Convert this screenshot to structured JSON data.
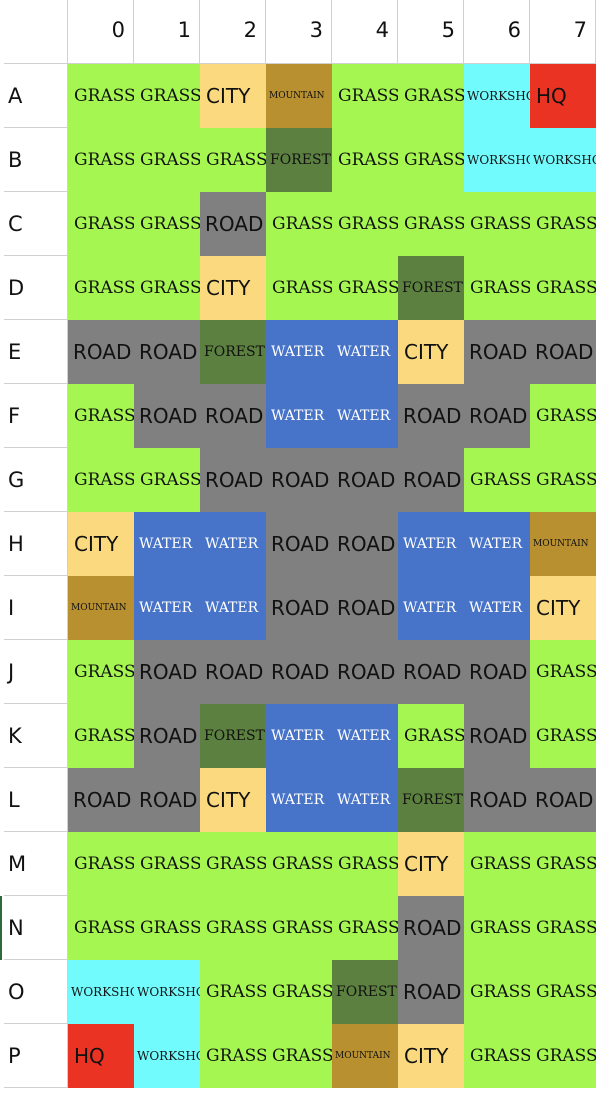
{
  "columns": [
    "0",
    "1",
    "2",
    "3",
    "4",
    "5",
    "6",
    "7"
  ],
  "tile_colors": {
    "GRASS": "#a5f650",
    "CITY": "#fad97f",
    "MOUNTAIN": "#b8902f",
    "FOREST": "#5c803f",
    "WORKSHOP": "#71fbfc",
    "HQ": "#ea3323",
    "ROAD": "#808080",
    "WATER": "#4774c9"
  },
  "rows": [
    {
      "label": "A",
      "cells": [
        "GRASS",
        "GRASS",
        "CITY",
        "MOUNTAIN",
        "GRASS",
        "GRASS",
        "WORKSHOP",
        "HQ"
      ]
    },
    {
      "label": "B",
      "cells": [
        "GRASS",
        "GRASS",
        "GRASS",
        "FOREST",
        "GRASS",
        "GRASS",
        "WORKSHOP",
        "WORKSHOP"
      ]
    },
    {
      "label": "C",
      "cells": [
        "GRASS",
        "GRASS",
        "ROAD",
        "GRASS",
        "GRASS",
        "GRASS",
        "GRASS",
        "GRASS"
      ]
    },
    {
      "label": "D",
      "cells": [
        "GRASS",
        "GRASS",
        "CITY",
        "GRASS",
        "GRASS",
        "FOREST",
        "GRASS",
        "GRASS"
      ]
    },
    {
      "label": "E",
      "cells": [
        "ROAD",
        "ROAD",
        "FOREST",
        "WATER",
        "WATER",
        "CITY",
        "ROAD",
        "ROAD"
      ]
    },
    {
      "label": "F",
      "cells": [
        "GRASS",
        "ROAD",
        "ROAD",
        "WATER",
        "WATER",
        "ROAD",
        "ROAD",
        "GRASS"
      ]
    },
    {
      "label": "G",
      "cells": [
        "GRASS",
        "GRASS",
        "ROAD",
        "ROAD",
        "ROAD",
        "ROAD",
        "GRASS",
        "GRASS"
      ]
    },
    {
      "label": "H",
      "cells": [
        "CITY",
        "WATER",
        "WATER",
        "ROAD",
        "ROAD",
        "WATER",
        "WATER",
        "MOUNTAIN"
      ]
    },
    {
      "label": "I",
      "cells": [
        "MOUNTAIN",
        "WATER",
        "WATER",
        "ROAD",
        "ROAD",
        "WATER",
        "WATER",
        "CITY"
      ]
    },
    {
      "label": "J",
      "cells": [
        "GRASS",
        "ROAD",
        "ROAD",
        "ROAD",
        "ROAD",
        "ROAD",
        "ROAD",
        "GRASS"
      ]
    },
    {
      "label": "K",
      "cells": [
        "GRASS",
        "ROAD",
        "FOREST",
        "WATER",
        "WATER",
        "GRASS",
        "ROAD",
        "GRASS"
      ]
    },
    {
      "label": "L",
      "cells": [
        "ROAD",
        "ROAD",
        "CITY",
        "WATER",
        "WATER",
        "FOREST",
        "ROAD",
        "ROAD"
      ]
    },
    {
      "label": "M",
      "cells": [
        "GRASS",
        "GRASS",
        "GRASS",
        "GRASS",
        "GRASS",
        "CITY",
        "GRASS",
        "GRASS"
      ]
    },
    {
      "label": "N",
      "cells": [
        "GRASS",
        "GRASS",
        "GRASS",
        "GRASS",
        "GRASS",
        "ROAD",
        "GRASS",
        "GRASS"
      ]
    },
    {
      "label": "O",
      "cells": [
        "WORKSHOP",
        "WORKSHOP",
        "GRASS",
        "GRASS",
        "FOREST",
        "ROAD",
        "GRASS",
        "GRASS"
      ]
    },
    {
      "label": "P",
      "cells": [
        "HQ",
        "WORKSHOP",
        "GRASS",
        "GRASS",
        "MOUNTAIN",
        "CITY",
        "GRASS",
        "GRASS"
      ]
    }
  ]
}
